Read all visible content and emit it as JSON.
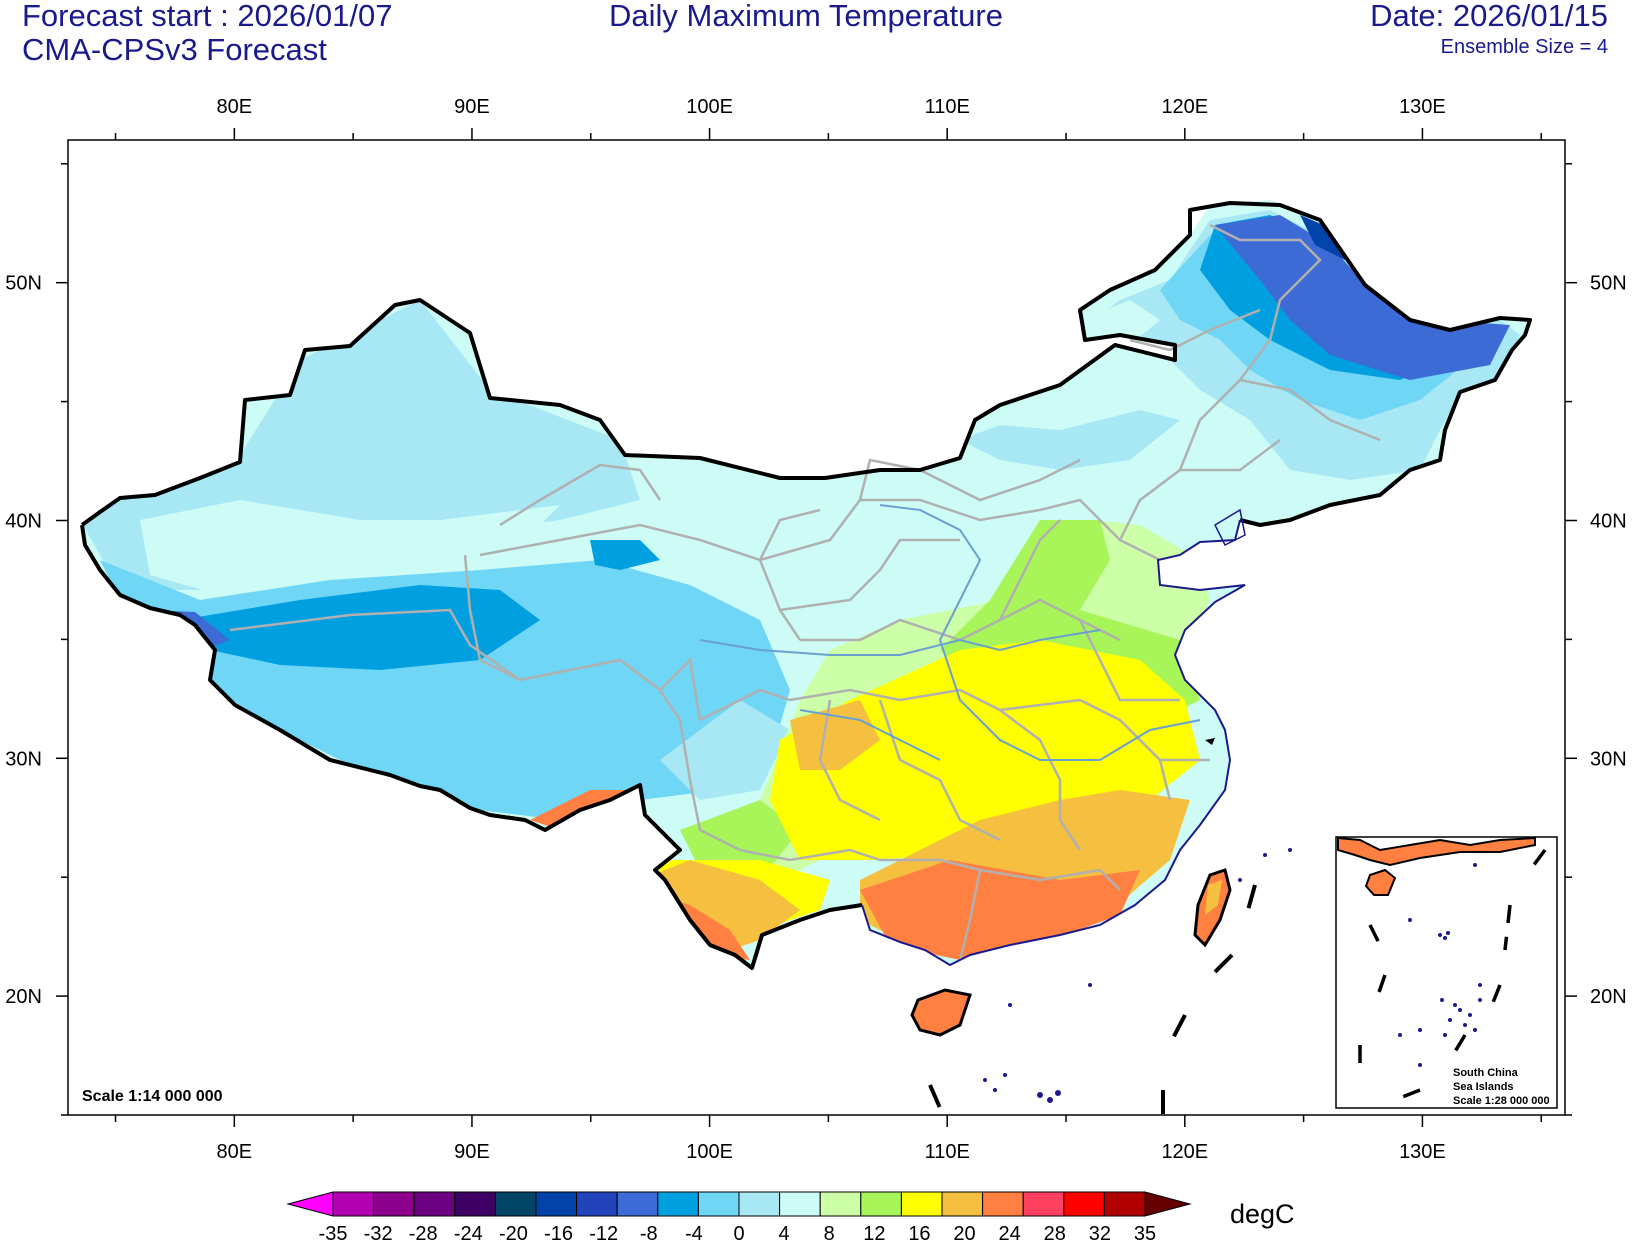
{
  "header": {
    "forecast_start": "Forecast start : 2026/01/07",
    "model": "CMA-CPSv3 Forecast",
    "title": "Daily Maximum Temperature",
    "date": "Date: 2026/01/15",
    "ensemble": "Ensemble Size = 4"
  },
  "map": {
    "lon_labels": [
      "80E",
      "90E",
      "100E",
      "110E",
      "120E",
      "130E"
    ],
    "lon_values": [
      80,
      90,
      100,
      110,
      120,
      130
    ],
    "lat_labels": [
      "20N",
      "30N",
      "40N",
      "50N"
    ],
    "lat_values": [
      20,
      30,
      40,
      50
    ],
    "lon_range": [
      73,
      136
    ],
    "lat_range": [
      15,
      56
    ],
    "scale": "Scale 1:14 000 000",
    "inset": {
      "line1": "South China",
      "line2": "Sea Islands",
      "line3": "Scale 1:28 000 000"
    }
  },
  "colorbar": {
    "units": "degC",
    "tick_labels": [
      "-35",
      "-32",
      "-28",
      "-24",
      "-20",
      "-16",
      "-12",
      "-8",
      "-4",
      "0",
      "4",
      "8",
      "12",
      "16",
      "20",
      "24",
      "28",
      "32",
      "35"
    ],
    "colors": [
      "#ff00ff",
      "#b200b2",
      "#8c008c",
      "#6b0080",
      "#3f0066",
      "#004466",
      "#0044aa",
      "#2244bb",
      "#3d6bd6",
      "#00a0e0",
      "#70d6f5",
      "#a8e8f5",
      "#ccfcf5",
      "#ccffa8",
      "#a8f55a",
      "#ffff00",
      "#f5c040",
      "#ff8040",
      "#ff4060",
      "#ff0000",
      "#b00000",
      "#660000"
    ]
  }
}
